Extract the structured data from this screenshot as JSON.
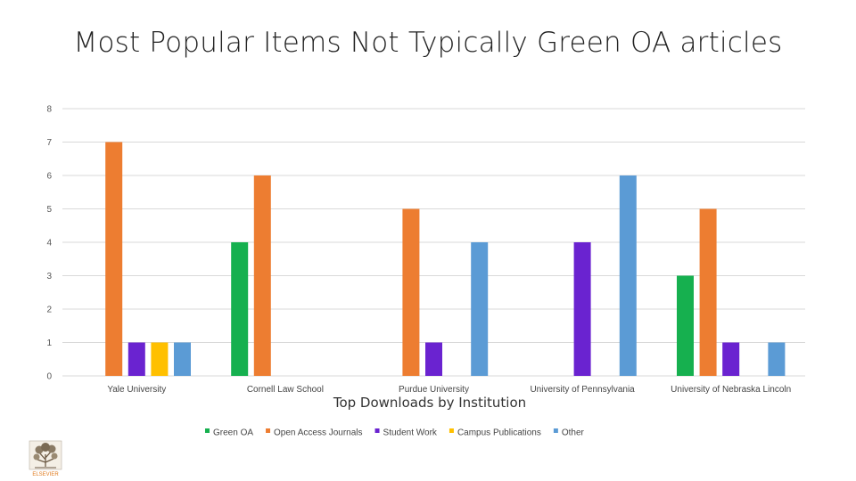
{
  "slide_title": "Most Popular Items Not Typically Green OA articles",
  "chart_data": {
    "type": "bar",
    "title": "Most Popular Items Not Typically Green OA articles",
    "xlabel": "Top Downloads by Institution",
    "ylabel": "",
    "ylim": [
      0,
      8
    ],
    "yticks": [
      0,
      1,
      2,
      3,
      4,
      5,
      6,
      7,
      8
    ],
    "grid": true,
    "legend_position": "bottom",
    "categories": [
      "Yale University",
      "Cornell Law School",
      "Purdue University",
      "University of Pennsylvania",
      "University of Nebraska Lincoln"
    ],
    "series": [
      {
        "name": "Green OA",
        "color": "#16b04f",
        "values": [
          0,
          4,
          0,
          0,
          3
        ]
      },
      {
        "name": "Open Access Journals",
        "color": "#ed7d31",
        "values": [
          7,
          6,
          5,
          0,
          5
        ]
      },
      {
        "name": "Student Work",
        "color": "#6a23d0",
        "values": [
          1,
          0,
          1,
          4,
          1
        ]
      },
      {
        "name": "Campus Publications",
        "color": "#ffc000",
        "values": [
          1,
          0,
          0,
          0,
          0
        ]
      },
      {
        "name": "Other",
        "color": "#5b9bd5",
        "values": [
          1,
          0,
          4,
          6,
          1
        ]
      }
    ]
  },
  "logo": {
    "icon": "elsevier-tree-icon",
    "text": "ELSEVIER"
  }
}
